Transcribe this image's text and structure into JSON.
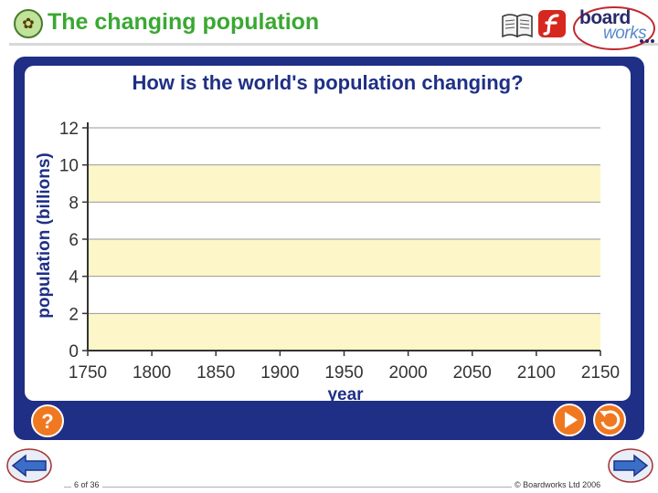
{
  "header": {
    "title": "The changing population",
    "brand_board": "board",
    "brand_works": "works"
  },
  "main": {
    "question": "How is the world's population changing?"
  },
  "chart_data": {
    "type": "line",
    "title": "How is the world's population changing?",
    "xlabel": "year",
    "ylabel": "population (billions)",
    "x_ticks": [
      1750,
      1800,
      1850,
      1900,
      1950,
      2000,
      2050,
      2100,
      2150
    ],
    "y_ticks": [
      0,
      2,
      4,
      6,
      8,
      10,
      12
    ],
    "xlim": [
      1750,
      2150
    ],
    "ylim": [
      0,
      12
    ],
    "series": [],
    "band_colors": [
      "#fdf6c8",
      "#ffffff"
    ],
    "grid": true
  },
  "footer": {
    "slide_counter": "6 of 36",
    "copyright": "© Boardworks Ltd 2006"
  },
  "icons": {
    "help": "question-mark-icon",
    "next": "play-icon",
    "replay": "replay-icon",
    "prev_slide": "left-arrow-icon",
    "next_slide": "right-arrow-icon"
  },
  "colors": {
    "title": "#3aa832",
    "frame": "#1f2f86",
    "accent_button": "#f07820"
  }
}
